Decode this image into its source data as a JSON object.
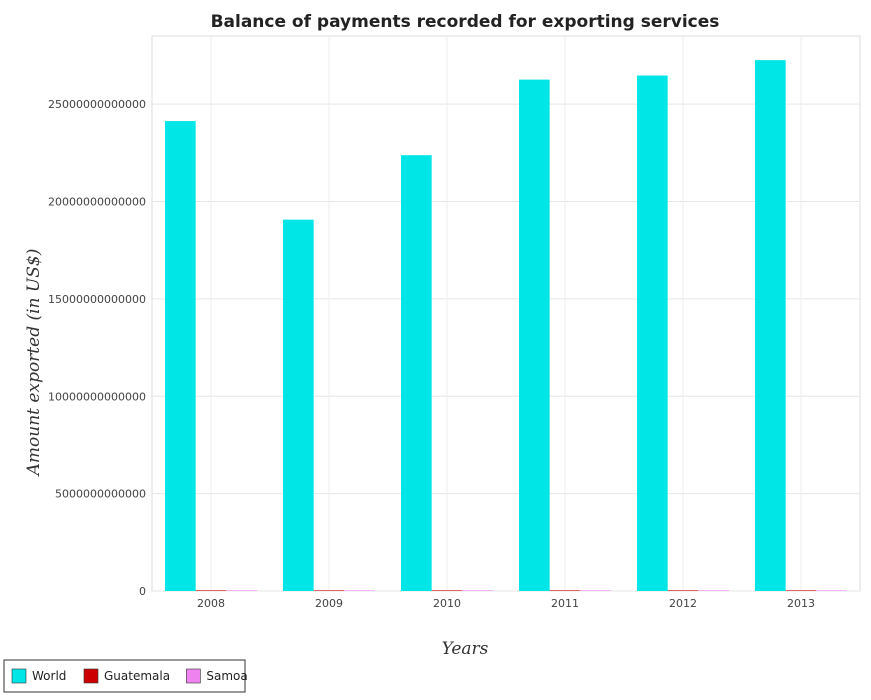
{
  "chart_data": {
    "type": "bar",
    "title": "Balance of payments recorded for exporting services",
    "xlabel": "Years",
    "ylabel": "Amount exported (in US$)",
    "categories": [
      "2008",
      "2009",
      "2010",
      "2011",
      "2012",
      "2013"
    ],
    "series": [
      {
        "name": "World",
        "color": "#00e5e5",
        "values": [
          24130000000000,
          19070000000000,
          22380000000000,
          26260000000000,
          26470000000000,
          27260000000000
        ]
      },
      {
        "name": "Guatemala",
        "color": "#cc0000",
        "values": [
          2300000000,
          2200000000,
          2200000000,
          2400000000,
          2500000000,
          2600000000
        ]
      },
      {
        "name": "Samoa",
        "color": "#ee82ee",
        "values": [
          170000000,
          165000000,
          180000000,
          190000000,
          200000000,
          210000000
        ]
      }
    ],
    "ylim": [
      0,
      28500000000000
    ],
    "yticks": [
      0,
      5000000000000,
      10000000000000,
      15000000000000,
      20000000000000,
      25000000000000
    ],
    "ytick_labels": [
      "0",
      "5000000000000",
      "10000000000000",
      "15000000000000",
      "20000000000000",
      "25000000000000"
    ],
    "grid": true,
    "legend_position": "bottom-left"
  }
}
